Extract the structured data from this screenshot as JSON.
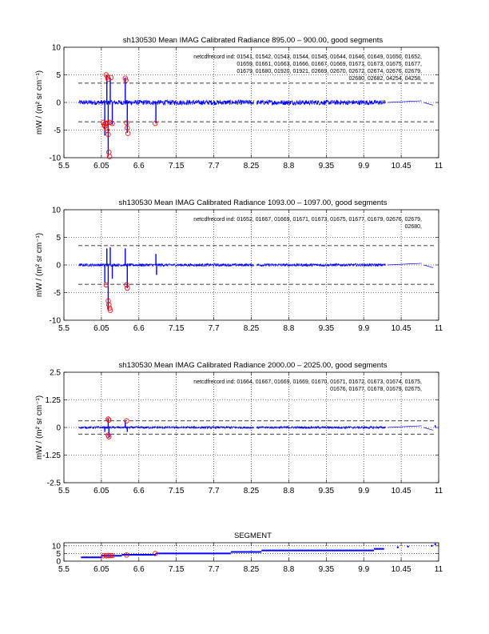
{
  "chart_data": [
    {
      "type": "line",
      "title": "sh130530 Mean IMAG Calibrated Radiance 895.00 – 900.00, good segments",
      "xlabel": "",
      "ylabel": "mW / (m² sr cm⁻¹)",
      "xlim": [
        5.5,
        11
      ],
      "ylim": [
        -10,
        10
      ],
      "xticks": [
        "5.5",
        "6.05",
        "6.6",
        "7.15",
        "7.7",
        "8.25",
        "8.8",
        "9.35",
        "9.9",
        "10.45",
        "11"
      ],
      "yticks": [
        "10",
        "5",
        "0",
        "-5",
        "-10"
      ],
      "grid": true,
      "thresholds": [
        3.5,
        -3.5
      ],
      "noise_amp": 0.45,
      "annotation_prefix": "netcdfrecord ind: ",
      "annotation": [
        "01541, 01542, 01543, 01544, 01545, 01644, 01646, 01649, 01650, 01652,",
        "01659, 01661, 01663, 01666, 01667, 01669, 01671, 01673, 01675, 01677,",
        "01679, 01680, 01920, 01921, 02669, 02670, 02672, 02674, 02676, 02679,",
        "02680, 02682, 04254, 04258,"
      ],
      "spikes": [
        {
          "x": 6.1,
          "y": -6.0
        },
        {
          "x": 6.13,
          "y": 5.0
        },
        {
          "x": 6.15,
          "y": -9.8
        },
        {
          "x": 6.18,
          "y": 4.5
        },
        {
          "x": 6.21,
          "y": -4.0
        },
        {
          "x": 6.4,
          "y": 4.5
        },
        {
          "x": 6.43,
          "y": -5.5
        },
        {
          "x": 6.85,
          "y": -3.8
        }
      ],
      "outliers": [
        {
          "x": 6.08,
          "y": -3.6
        },
        {
          "x": 6.09,
          "y": -4.0
        },
        {
          "x": 6.1,
          "y": -4.3
        },
        {
          "x": 6.11,
          "y": -3.8
        },
        {
          "x": 6.12,
          "y": -4.6
        },
        {
          "x": 6.13,
          "y": -5.0
        },
        {
          "x": 6.14,
          "y": -3.7
        },
        {
          "x": 6.15,
          "y": -5.8
        },
        {
          "x": 6.16,
          "y": -9.0
        },
        {
          "x": 6.17,
          "y": -9.8
        },
        {
          "x": 6.12,
          "y": 5.0
        },
        {
          "x": 6.14,
          "y": 4.6
        },
        {
          "x": 6.15,
          "y": 4.2
        },
        {
          "x": 6.17,
          "y": -3.6
        },
        {
          "x": 6.19,
          "y": 4.5
        },
        {
          "x": 6.21,
          "y": -3.8
        },
        {
          "x": 6.4,
          "y": 4.4
        },
        {
          "x": 6.41,
          "y": 4.0
        },
        {
          "x": 6.42,
          "y": -3.7
        },
        {
          "x": 6.43,
          "y": -4.6
        },
        {
          "x": 6.44,
          "y": -5.6
        },
        {
          "x": 6.84,
          "y": -3.8
        }
      ]
    },
    {
      "type": "line",
      "title": "sh130530 Mean IMAG Calibrated Radiance 1093.00 – 1097.00, good segments",
      "xlabel": "",
      "ylabel": "mW / (m² sr cm⁻¹)",
      "xlim": [
        5.5,
        11
      ],
      "ylim": [
        -10,
        10
      ],
      "xticks": [
        "5.5",
        "6.05",
        "6.6",
        "7.15",
        "7.7",
        "8.25",
        "8.8",
        "9.35",
        "9.9",
        "10.45",
        "11"
      ],
      "yticks": [
        "10",
        "5",
        "0",
        "-5",
        "-10"
      ],
      "grid": true,
      "thresholds": [
        3.5,
        -3.5
      ],
      "noise_amp": 0.25,
      "annotation_prefix": "netcdfrecord ind: ",
      "annotation": [
        "01652, 01667, 01669, 01671, 01673, 01675, 01677, 01679, 02676, 02679,",
        "02680,"
      ],
      "spikes": [
        {
          "x": 6.1,
          "y": -3.2
        },
        {
          "x": 6.13,
          "y": 3.0
        },
        {
          "x": 6.15,
          "y": -8.2
        },
        {
          "x": 6.18,
          "y": 3.2
        },
        {
          "x": 6.21,
          "y": -2.5
        },
        {
          "x": 6.4,
          "y": 3.0
        },
        {
          "x": 6.43,
          "y": -4.2
        },
        {
          "x": 6.85,
          "y": 2.0
        },
        {
          "x": 6.86,
          "y": -1.8
        }
      ],
      "outliers": [
        {
          "x": 6.12,
          "y": -3.6
        },
        {
          "x": 6.15,
          "y": -6.5
        },
        {
          "x": 6.16,
          "y": -7.2
        },
        {
          "x": 6.17,
          "y": -7.8
        },
        {
          "x": 6.18,
          "y": -8.2
        },
        {
          "x": 6.42,
          "y": -3.6
        },
        {
          "x": 6.43,
          "y": -4.2
        }
      ]
    },
    {
      "type": "line",
      "title": "sh130530 Mean IMAG Calibrated Radiance 2000.00 – 2025.00, good segments",
      "xlabel": "",
      "ylabel": "mW / (m² sr cm⁻¹)",
      "xlim": [
        5.5,
        11
      ],
      "ylim": [
        -2.5,
        2.5
      ],
      "xticks": [
        "5.5",
        "6.05",
        "6.6",
        "7.15",
        "7.7",
        "8.25",
        "8.8",
        "9.35",
        "9.9",
        "10.45",
        "11"
      ],
      "yticks": [
        "2.5",
        "1.25",
        "0",
        "-1.25",
        "-2.5"
      ],
      "grid": true,
      "thresholds": [
        0.3,
        -0.3
      ],
      "noise_amp": 0.05,
      "annotation_prefix": "netcdfrecord ind: ",
      "annotation": [
        "01664, 01667, 01669, 01669, 01670, 01671, 01672, 01673, 01674, 01675,",
        "01676, 01677, 01678, 01679, 02675,"
      ],
      "spikes": [
        {
          "x": 6.1,
          "y": -0.2
        },
        {
          "x": 6.15,
          "y": 0.4
        },
        {
          "x": 6.16,
          "y": -0.45
        },
        {
          "x": 6.4,
          "y": 0.3
        },
        {
          "x": 6.43,
          "y": -0.2
        },
        {
          "x": 10.95,
          "y": 0.1
        }
      ],
      "outliers": [
        {
          "x": 6.15,
          "y": 0.38
        },
        {
          "x": 6.16,
          "y": 0.33
        },
        {
          "x": 6.15,
          "y": -0.35
        },
        {
          "x": 6.16,
          "y": -0.42
        },
        {
          "x": 6.42,
          "y": 0.3
        }
      ]
    },
    {
      "type": "line",
      "title": "SEGMENT",
      "xlabel": "",
      "ylabel": "",
      "xlim": [
        5.5,
        11
      ],
      "ylim": [
        0,
        12
      ],
      "xticks": [
        "5.5",
        "6.05",
        "6.6",
        "7.15",
        "7.7",
        "8.25",
        "8.8",
        "9.35",
        "9.9",
        "10.45",
        "11"
      ],
      "yticks": [
        "10",
        "5",
        "0"
      ],
      "grid": true,
      "segments": [
        {
          "x0": 5.75,
          "x1": 6.05,
          "y": 2.5
        },
        {
          "x0": 6.05,
          "x1": 6.35,
          "y": 3.5
        },
        {
          "x0": 6.35,
          "x1": 6.85,
          "y": 4.2
        },
        {
          "x0": 6.85,
          "x1": 7.95,
          "y": 5.0
        },
        {
          "x0": 7.95,
          "x1": 8.4,
          "y": 6.0
        },
        {
          "x0": 8.4,
          "x1": 10.05,
          "y": 7.0
        },
        {
          "x0": 10.05,
          "x1": 10.2,
          "y": 8.0
        }
      ],
      "points": [
        {
          "x": 10.4,
          "y": 9.0
        },
        {
          "x": 10.55,
          "y": 9.5
        },
        {
          "x": 10.9,
          "y": 10.0
        },
        {
          "x": 10.95,
          "y": 11.0
        }
      ],
      "outliers": [
        {
          "x": 6.08,
          "y": 3.5
        },
        {
          "x": 6.12,
          "y": 3.5
        },
        {
          "x": 6.15,
          "y": 3.6
        },
        {
          "x": 6.18,
          "y": 3.6
        },
        {
          "x": 6.21,
          "y": 3.6
        },
        {
          "x": 6.42,
          "y": 4.0
        },
        {
          "x": 6.84,
          "y": 5.0
        }
      ]
    }
  ]
}
